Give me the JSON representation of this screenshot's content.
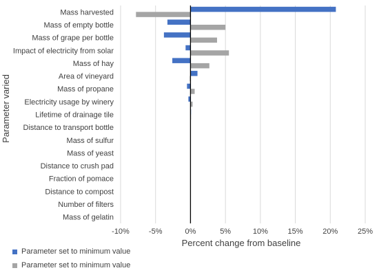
{
  "chart_data": {
    "type": "bar",
    "orientation": "horizontal",
    "title": "",
    "xlabel": "Percent change from baseline",
    "ylabel": "Parameter varied",
    "xlim": [
      -10,
      25
    ],
    "x_ticks": [
      -10,
      -5,
      0,
      5,
      10,
      15,
      20,
      25
    ],
    "x_tick_labels": [
      "-10%",
      "-5%",
      "0%",
      "5%",
      "10%",
      "15%",
      "20%",
      "25%"
    ],
    "grid": "vertical",
    "legend_position": "bottom-left",
    "categories": [
      "Mass harvested",
      "Mass of empty bottle",
      "Mass of grape per bottle",
      "Impact of electricity from solar",
      "Mass of hay",
      "Area of vineyard",
      "Mass of propane",
      "Electricity usage by winery",
      "Lifetime of drainage tile",
      "Distance to transport bottle",
      "Mass of sulfur",
      "Mass of yeast",
      "Distance to crush pad",
      "Fraction of pomace",
      "Distance to compost",
      "Number of filters",
      "Mass of gelatin"
    ],
    "series": [
      {
        "name": "Parameter set to minimum value",
        "color": "#4472C4",
        "values": [
          20.8,
          -3.3,
          -3.8,
          -0.7,
          -2.6,
          1.0,
          -0.5,
          -0.3,
          0.05,
          0,
          0,
          0,
          0,
          0,
          0,
          0,
          0
        ]
      },
      {
        "name": "Parameter set to minimum value",
        "color": "#A5A5A5",
        "values": [
          -7.8,
          5.0,
          3.8,
          5.5,
          2.7,
          -0.1,
          0.6,
          0.3,
          0.05,
          0,
          0,
          0,
          0,
          0,
          0,
          0,
          0
        ]
      }
    ]
  }
}
